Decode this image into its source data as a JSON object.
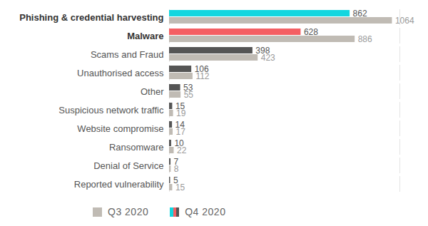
{
  "chart_data": {
    "type": "bar",
    "orientation": "horizontal",
    "data_labels": true,
    "tick_labels": "y",
    "legend": "bottom",
    "categories": [
      "Phishing & credential harvesting",
      "Malware",
      "Scams and Fraud",
      "Unauthorised access",
      "Other",
      "Suspicious network traffic",
      "Website compromise",
      "Ransomware",
      "Denial of Service",
      "Reported vulnerability"
    ],
    "xlim": [
      0,
      1100
    ],
    "series": [
      {
        "name": "Q3 2020",
        "color": "#c0bbb4",
        "values": [
          1064,
          886,
          423,
          112,
          55,
          19,
          17,
          22,
          8,
          15
        ]
      },
      {
        "name": "Q4 2020",
        "colors": [
          "#14d6df",
          "#f45f63",
          "#555555",
          "#555555",
          "#555555",
          "#555555",
          "#555555",
          "#555555",
          "#555555",
          "#555555"
        ],
        "values": [
          862,
          628,
          398,
          106,
          53,
          15,
          14,
          10,
          7,
          5
        ]
      }
    ]
  }
}
